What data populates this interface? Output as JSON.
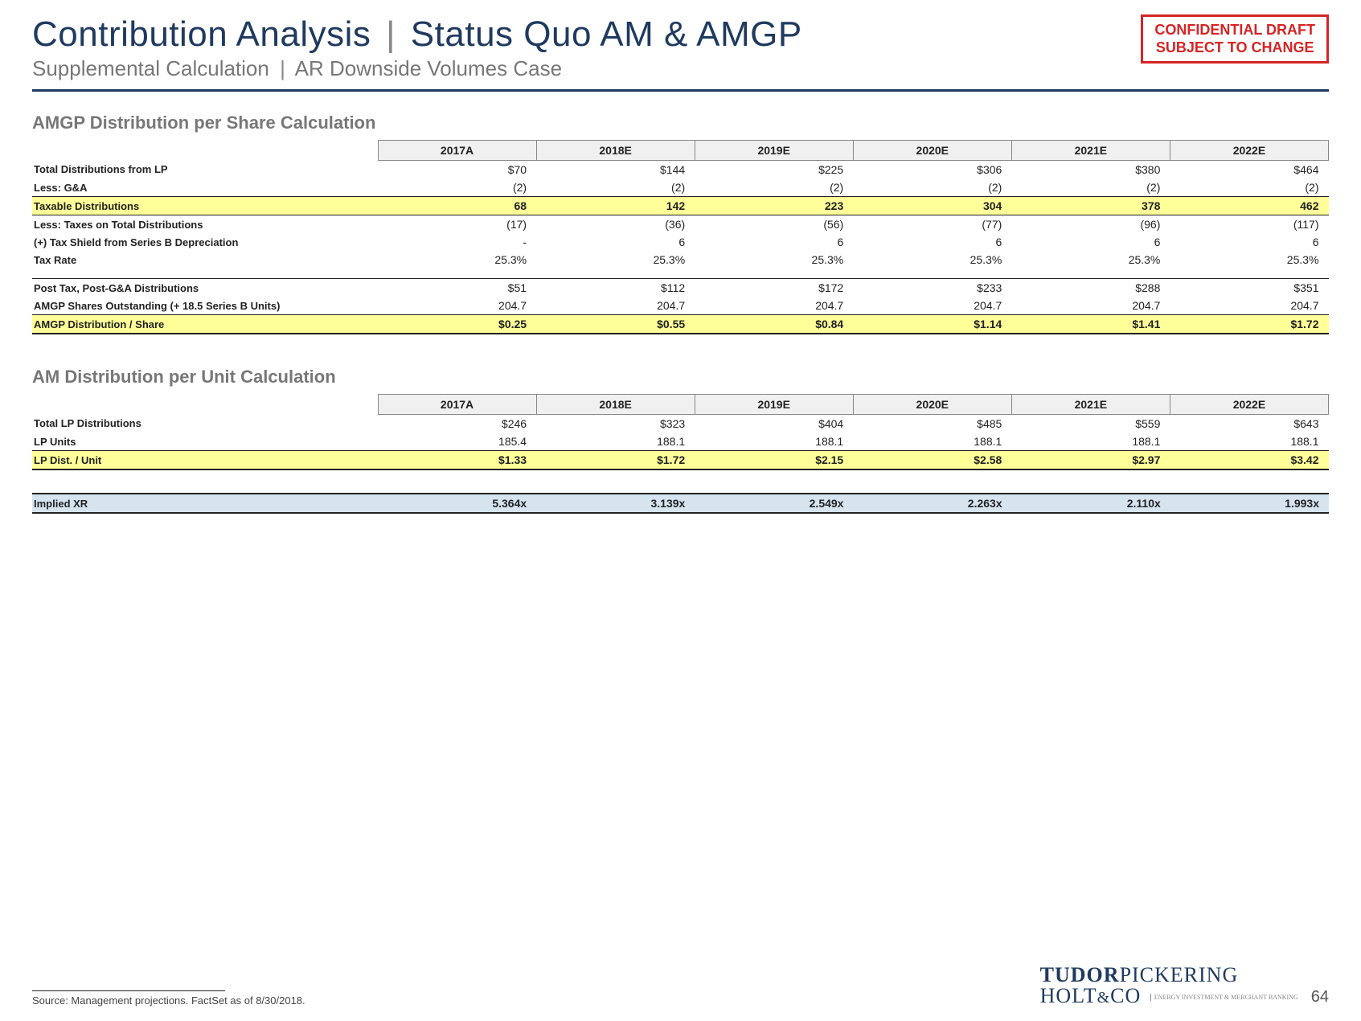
{
  "header": {
    "title_a": "Contribution Analysis",
    "title_b": "Status Quo AM & AMGP",
    "subtitle_a": "Supplemental Calculation",
    "subtitle_b": "AR Downside Volumes Case",
    "conf_l1": "CONFIDENTIAL DRAFT",
    "conf_l2": "SUBJECT TO CHANGE"
  },
  "years": [
    "2017A",
    "2018E",
    "2019E",
    "2020E",
    "2021E",
    "2022E"
  ],
  "section1": {
    "heading": "AMGP Distribution per Share Calculation",
    "rows": [
      {
        "label": "Total Distributions from LP",
        "vals": [
          "$70",
          "$144",
          "$225",
          "$306",
          "$380",
          "$464"
        ],
        "cls": ""
      },
      {
        "label": "Less: G&A",
        "vals": [
          "(2)",
          "(2)",
          "(2)",
          "(2)",
          "(2)",
          "(2)"
        ],
        "cls": "line-below"
      },
      {
        "label": "Taxable Distributions",
        "vals": [
          "68",
          "142",
          "223",
          "304",
          "378",
          "462"
        ],
        "cls": "hl line-below"
      },
      {
        "label": "Less: Taxes on Total Distributions",
        "vals": [
          "(17)",
          "(36)",
          "(56)",
          "(77)",
          "(96)",
          "(117)"
        ],
        "cls": ""
      },
      {
        "label": "(+) Tax Shield from Series B Depreciation",
        "vals": [
          "-",
          "6",
          "6",
          "6",
          "6",
          "6"
        ],
        "cls": ""
      },
      {
        "label": "Tax Rate",
        "vals": [
          "25.3%",
          "25.3%",
          "25.3%",
          "25.3%",
          "25.3%",
          "25.3%"
        ],
        "cls": ""
      },
      {
        "label": "",
        "vals": [
          "",
          "",
          "",
          "",
          "",
          ""
        ],
        "cls": "spacer"
      },
      {
        "label": "Post Tax, Post-G&A Distributions",
        "vals": [
          "$51",
          "$112",
          "$172",
          "$233",
          "$288",
          "$351"
        ],
        "cls": "line-above"
      },
      {
        "label": "AMGP Shares Outstanding (+ 18.5 Series B Units)",
        "vals": [
          "204.7",
          "204.7",
          "204.7",
          "204.7",
          "204.7",
          "204.7"
        ],
        "cls": "line-below"
      },
      {
        "label": "AMGP Distribution / Share",
        "vals": [
          "$0.25",
          "$0.55",
          "$0.84",
          "$1.14",
          "$1.41",
          "$1.72"
        ],
        "cls": "hl thick-below"
      }
    ]
  },
  "section2": {
    "heading": "AM Distribution per Unit Calculation",
    "rows": [
      {
        "label": "Total LP Distributions",
        "vals": [
          "$246",
          "$323",
          "$404",
          "$485",
          "$559",
          "$643"
        ],
        "cls": ""
      },
      {
        "label": "LP Units",
        "vals": [
          "185.4",
          "188.1",
          "188.1",
          "188.1",
          "188.1",
          "188.1"
        ],
        "cls": "line-below"
      },
      {
        "label": "LP Dist. / Unit",
        "vals": [
          "$1.33",
          "$1.72",
          "$2.15",
          "$2.58",
          "$2.97",
          "$3.42"
        ],
        "cls": "hl thick-below"
      }
    ],
    "implied": {
      "label": "Implied XR",
      "vals": [
        "5.364x",
        "3.139x",
        "2.549x",
        "2.263x",
        "2.110x",
        "1.993x"
      ],
      "cls": "hl-blue thick-above thick-below"
    }
  },
  "footer": {
    "source": "Source: Management projections. FactSet as of 8/30/2018.",
    "logo_l1a": "TUDOR",
    "logo_l1b": "PICKERING",
    "logo_l2a": "HOLT",
    "logo_l2b": "&",
    "logo_l2c": "CO",
    "logo_tag": "ENERGY INVESTMENT & MERCHANT BANKING",
    "page": "64"
  },
  "colors": {
    "navy": "#1f3a5f",
    "grey": "#777777",
    "red": "#d62424",
    "hl_yellow": "#ffff99",
    "hl_blue": "#d6e4f0",
    "header_bg": "#f0f0f0"
  }
}
